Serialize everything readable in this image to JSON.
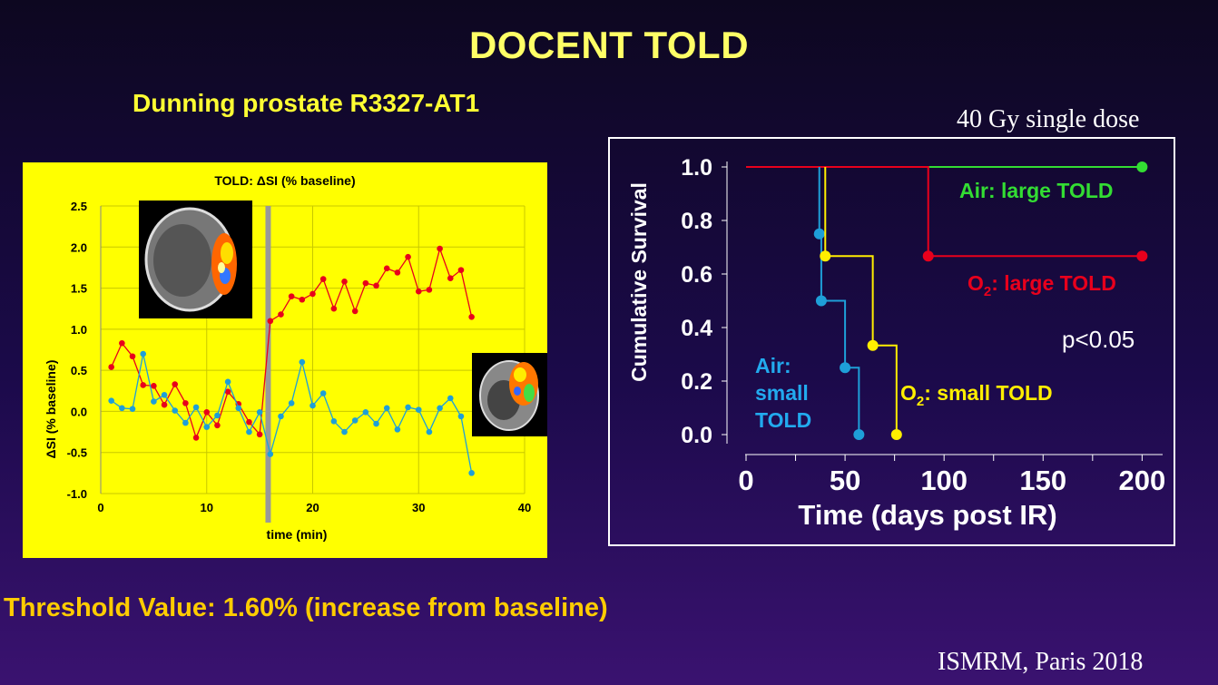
{
  "slide": {
    "title": "DOCENT TOLD",
    "subtitle": "Dunning prostate R3327-AT1",
    "dose_note": "40 Gy single dose",
    "threshold_text": "Threshold Value: 1.60% (increase from baseline)",
    "footer": "ISMRM, Paris 2018"
  },
  "colors": {
    "title": "#ffff66",
    "left_bg": "#ffff00",
    "red_series": "#e8001c",
    "blue_series": "#1e9fd8",
    "green_series": "#33dd33",
    "yellow_series": "#ffee00",
    "cyan_label": "#22aaee"
  },
  "chart_data": [
    {
      "type": "line",
      "title": "TOLD: ΔSI (% baseline)",
      "xlabel": "time (min)",
      "ylabel": "ΔSI (% baseline)",
      "xlim": [
        0,
        40
      ],
      "ylim": [
        -1.0,
        2.5
      ],
      "xticks": [
        0,
        10,
        20,
        30,
        40
      ],
      "yticks": [
        -1.0,
        -0.5,
        0.0,
        0.5,
        1.0,
        1.5,
        2.0,
        2.5
      ],
      "xtick_labels": [
        "0",
        "10",
        "20",
        "30",
        "40"
      ],
      "ytick_labels": [
        "-1.0",
        "-0.5",
        "0.0",
        "0.5",
        "1.0",
        "1.5",
        "2.0",
        "2.5"
      ],
      "marker_line_x": 15.8,
      "series": [
        {
          "name": "red",
          "color": "#e8001c",
          "x": [
            1,
            2,
            3,
            4,
            5,
            6,
            7,
            8,
            9,
            10,
            11,
            12,
            13,
            14,
            15,
            16,
            17,
            18,
            19,
            20,
            21,
            22,
            23,
            24,
            25,
            26,
            27,
            28,
            29,
            30,
            31,
            32,
            33,
            34,
            35
          ],
          "y": [
            0.54,
            0.83,
            0.67,
            0.32,
            0.31,
            0.08,
            0.33,
            0.1,
            -0.32,
            -0.01,
            -0.17,
            0.24,
            0.09,
            -0.13,
            -0.28,
            1.1,
            1.18,
            1.4,
            1.36,
            1.43,
            1.61,
            1.25,
            1.58,
            1.22,
            1.56,
            1.53,
            1.74,
            1.69,
            1.88,
            1.46,
            1.48,
            1.98,
            1.62,
            1.72,
            1.15
          ]
        },
        {
          "name": "blue",
          "color": "#1e9fd8",
          "x": [
            1,
            2,
            3,
            4,
            5,
            6,
            7,
            8,
            9,
            10,
            11,
            12,
            13,
            14,
            15,
            16,
            17,
            18,
            19,
            20,
            21,
            22,
            23,
            24,
            25,
            26,
            27,
            28,
            29,
            30,
            31,
            32,
            33,
            34,
            35
          ],
          "y": [
            0.13,
            0.04,
            0.03,
            0.7,
            0.12,
            0.2,
            0.01,
            -0.14,
            0.05,
            -0.19,
            -0.05,
            0.36,
            0.04,
            -0.25,
            -0.01,
            -0.52,
            -0.06,
            0.1,
            0.6,
            0.07,
            0.22,
            -0.12,
            -0.25,
            -0.11,
            -0.01,
            -0.15,
            0.04,
            -0.22,
            0.05,
            0.02,
            -0.25,
            0.04,
            0.16,
            -0.06,
            -0.75
          ]
        }
      ]
    },
    {
      "type": "line",
      "title": "",
      "xlabel": "Time (days post IR)",
      "ylabel": "Cumulative Survival",
      "xlim": [
        0,
        220
      ],
      "ylim": [
        0.0,
        1.0
      ],
      "xticks": [
        0,
        50,
        100,
        150,
        200
      ],
      "yticks": [
        0.0,
        0.2,
        0.4,
        0.6,
        0.8,
        1.0
      ],
      "xtick_labels": [
        "0",
        "50",
        "100",
        "150",
        "200"
      ],
      "ytick_labels": [
        "0.0",
        "0.2",
        "0.4",
        "0.6",
        "0.8",
        "1.0"
      ],
      "annotation": "p<0.05",
      "series": [
        {
          "name": "Air: large TOLD",
          "color": "#33dd33",
          "steps": [
            [
              0,
              1.0
            ],
            [
              200,
              1.0
            ]
          ],
          "markers": [
            [
              200,
              1.0
            ]
          ]
        },
        {
          "name": "O2: large TOLD",
          "label_main": "O",
          "label_sub": "2",
          "label_rest": ": large TOLD",
          "color": "#e8001c",
          "steps": [
            [
              0,
              1.0
            ],
            [
              92,
              1.0
            ],
            [
              92,
              0.667
            ],
            [
              200,
              0.667
            ]
          ],
          "markers": [
            [
              92,
              0.667
            ],
            [
              200,
              0.667
            ]
          ]
        },
        {
          "name": "Air: small TOLD",
          "label_lines": [
            "Air:",
            "small",
            "TOLD"
          ],
          "color": "#1e9fd8",
          "steps": [
            [
              37,
              1.0
            ],
            [
              37,
              0.75
            ],
            [
              38,
              0.75
            ],
            [
              38,
              0.5
            ],
            [
              50,
              0.5
            ],
            [
              50,
              0.25
            ],
            [
              57,
              0.25
            ],
            [
              57,
              0.0
            ]
          ],
          "markers": [
            [
              37,
              0.75
            ],
            [
              38,
              0.5
            ],
            [
              50,
              0.25
            ],
            [
              57,
              0.0
            ]
          ]
        },
        {
          "name": "O2: small TOLD",
          "label_main": "O",
          "label_sub": "2",
          "label_rest": ": small TOLD",
          "color": "#ffee00",
          "steps": [
            [
              40,
              1.0
            ],
            [
              40,
              0.667
            ],
            [
              64,
              0.667
            ],
            [
              64,
              0.333
            ],
            [
              76,
              0.333
            ],
            [
              76,
              0.0
            ]
          ],
          "markers": [
            [
              40,
              0.667
            ],
            [
              64,
              0.333
            ],
            [
              76,
              0.0
            ]
          ]
        }
      ]
    }
  ]
}
